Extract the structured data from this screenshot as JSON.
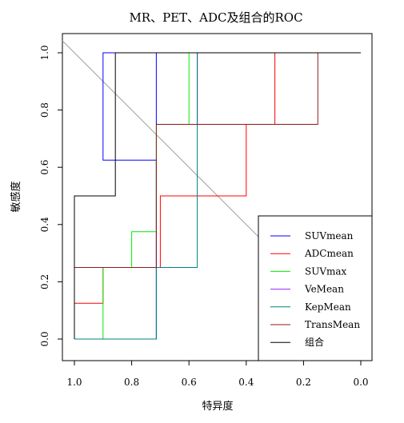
{
  "chart_data": {
    "type": "line",
    "title": "MR、PET、ADC及组合的ROC",
    "xlabel": "特异度",
    "ylabel": "敏感度",
    "xlim": [
      1.0,
      0.0
    ],
    "ylim": [
      0.0,
      1.0
    ],
    "x_reversed": true,
    "xticks": [
      "1.0",
      "0.8",
      "0.6",
      "0.4",
      "0.2",
      "0.0"
    ],
    "yticks": [
      "0.0",
      "0.2",
      "0.4",
      "0.6",
      "0.8",
      "1.0"
    ],
    "grid": false,
    "legend_position": "bottom-right",
    "reference_line": {
      "from": [
        1.0,
        0.0
      ],
      "to": [
        0.0,
        1.0
      ],
      "color": "#a0a0a0"
    },
    "series": [
      {
        "name": "SUVmean",
        "color": "#0000ff",
        "points": [
          [
            1.0,
            0.0
          ],
          [
            0.714,
            0.0
          ],
          [
            0.714,
            0.25
          ],
          [
            0.714,
            0.625
          ],
          [
            0.9,
            0.625
          ],
          [
            0.9,
            1.0
          ],
          [
            0.714,
            1.0
          ],
          [
            0.714,
            0.75
          ],
          [
            0.571,
            0.75
          ],
          [
            0.571,
            1.0
          ],
          [
            0.0,
            1.0
          ]
        ]
      },
      {
        "name": "ADCmean",
        "color": "#ff0000",
        "points": [
          [
            1.0,
            0.0
          ],
          [
            1.0,
            0.125
          ],
          [
            0.9,
            0.125
          ],
          [
            0.9,
            0.25
          ],
          [
            0.7,
            0.25
          ],
          [
            0.7,
            0.5
          ],
          [
            0.4,
            0.5
          ],
          [
            0.4,
            0.75
          ],
          [
            0.3,
            0.75
          ],
          [
            0.3,
            1.0
          ],
          [
            0.0,
            1.0
          ]
        ]
      },
      {
        "name": "SUVmax",
        "color": "#00ee00",
        "points": [
          [
            1.0,
            0.0
          ],
          [
            0.9,
            0.0
          ],
          [
            0.9,
            0.25
          ],
          [
            0.8,
            0.25
          ],
          [
            0.8,
            0.375
          ],
          [
            0.714,
            0.375
          ],
          [
            0.714,
            0.75
          ],
          [
            0.6,
            0.75
          ],
          [
            0.6,
            1.0
          ],
          [
            0.0,
            1.0
          ]
        ]
      },
      {
        "name": "VeMean",
        "color": "#a020f0",
        "points": [
          [
            0.571,
            0.75
          ],
          [
            0.571,
            1.0
          ],
          [
            0.0,
            1.0
          ]
        ]
      },
      {
        "name": "KepMean",
        "color": "#008080",
        "points": [
          [
            1.0,
            0.0
          ],
          [
            0.714,
            0.0
          ],
          [
            0.714,
            0.25
          ],
          [
            0.571,
            0.25
          ],
          [
            0.571,
            0.75
          ],
          [
            0.571,
            1.0
          ],
          [
            0.0,
            1.0
          ]
        ]
      },
      {
        "name": "TransMean",
        "color": "#8b1a1a",
        "points": [
          [
            1.0,
            0.0
          ],
          [
            1.0,
            0.25
          ],
          [
            0.714,
            0.25
          ],
          [
            0.714,
            0.75
          ],
          [
            0.15,
            0.75
          ],
          [
            0.15,
            1.0
          ],
          [
            0.0,
            1.0
          ]
        ]
      },
      {
        "name": "组合",
        "color": "#000000",
        "points": [
          [
            1.0,
            0.0
          ],
          [
            1.0,
            0.5
          ],
          [
            0.857,
            0.5
          ],
          [
            0.857,
            1.0
          ],
          [
            0.0,
            1.0
          ]
        ]
      }
    ]
  }
}
